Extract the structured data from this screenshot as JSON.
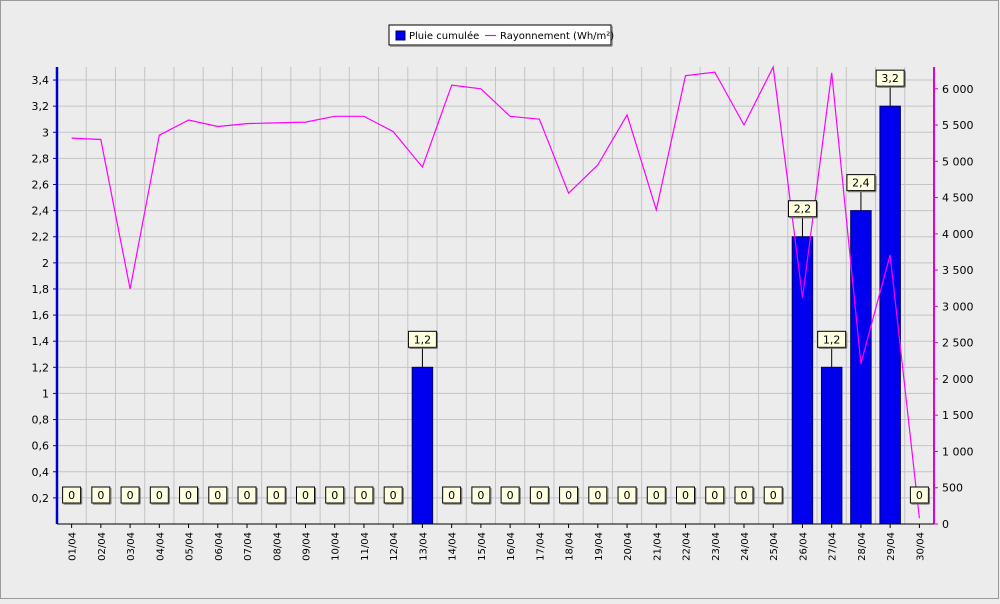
{
  "chart_data": {
    "type": "bar",
    "title": "",
    "legend": {
      "placement": "top-center",
      "bar_label": "Pluie cumulée",
      "line_label": "Rayonnement (Wh/m²)"
    },
    "grid": true,
    "categories": [
      "01/04",
      "02/04",
      "03/04",
      "04/04",
      "05/04",
      "06/04",
      "07/04",
      "08/04",
      "09/04",
      "10/04",
      "11/04",
      "12/04",
      "13/04",
      "14/04",
      "15/04",
      "16/04",
      "17/04",
      "18/04",
      "19/04",
      "20/04",
      "21/04",
      "22/04",
      "23/04",
      "24/04",
      "25/04",
      "26/04",
      "27/04",
      "28/04",
      "29/04",
      "30/04"
    ],
    "series": [
      {
        "name": "Pluie cumulée",
        "type": "bar",
        "axis": "left",
        "values": [
          0,
          0,
          0,
          0,
          0,
          0,
          0,
          0,
          0,
          0,
          0,
          0,
          1.2,
          0,
          0,
          0,
          0,
          0,
          0,
          0,
          0,
          0,
          0,
          0,
          0,
          2.2,
          1.2,
          2.4,
          3.2,
          0
        ],
        "data_labels": [
          "0",
          "0",
          "0",
          "0",
          "0",
          "0",
          "0",
          "0",
          "0",
          "0",
          "0",
          "0",
          "1,2",
          "0",
          "0",
          "0",
          "0",
          "0",
          "0",
          "0",
          "0",
          "0",
          "0",
          "0",
          "0",
          "2,2",
          "1,2",
          "2,4",
          "3,2",
          "0"
        ]
      },
      {
        "name": "Rayonnement (Wh/m²)",
        "type": "line",
        "axis": "right",
        "values": [
          5320,
          5300,
          3240,
          5360,
          5570,
          5480,
          5520,
          5530,
          5540,
          5620,
          5620,
          5410,
          4920,
          6050,
          6000,
          5620,
          5580,
          4560,
          4950,
          5640,
          4330,
          6180,
          6230,
          5500,
          6300,
          3120,
          6220,
          2210,
          3710,
          80
        ]
      }
    ],
    "y_left": {
      "min": 0,
      "max": 3.5,
      "ticks": [
        0.2,
        0.4,
        0.6,
        0.8,
        1,
        1.2,
        1.4,
        1.6,
        1.8,
        2,
        2.2,
        2.4,
        2.6,
        2.8,
        3,
        3.2,
        3.4
      ],
      "tick_labels": [
        "0,2",
        "0,4",
        "0,6",
        "0,8",
        "1",
        "1,2",
        "1,4",
        "1,6",
        "1,8",
        "2",
        "2,2",
        "2,4",
        "2,6",
        "2,8",
        "3",
        "3,2",
        "3,4"
      ]
    },
    "y_right": {
      "min": 0,
      "max": 6300,
      "ticks": [
        0,
        500,
        1000,
        1500,
        2000,
        2500,
        3000,
        3500,
        4000,
        4500,
        5000,
        5500,
        6000
      ],
      "tick_labels": [
        "0",
        "500",
        "1 000",
        "1 500",
        "2 000",
        "2 500",
        "3 000",
        "3 500",
        "4 000",
        "4 500",
        "5 000",
        "5 500",
        "6 000"
      ]
    },
    "colors": {
      "bar_fill": "#0000ee",
      "bar_stroke": "#000066",
      "line": "#ff00ff",
      "left_axis": "#0000cc",
      "right_axis": "#dd00dd",
      "grid": "#c4c4c4",
      "plot_bg": "#ececec",
      "label_bg": "#ffffe1"
    }
  }
}
